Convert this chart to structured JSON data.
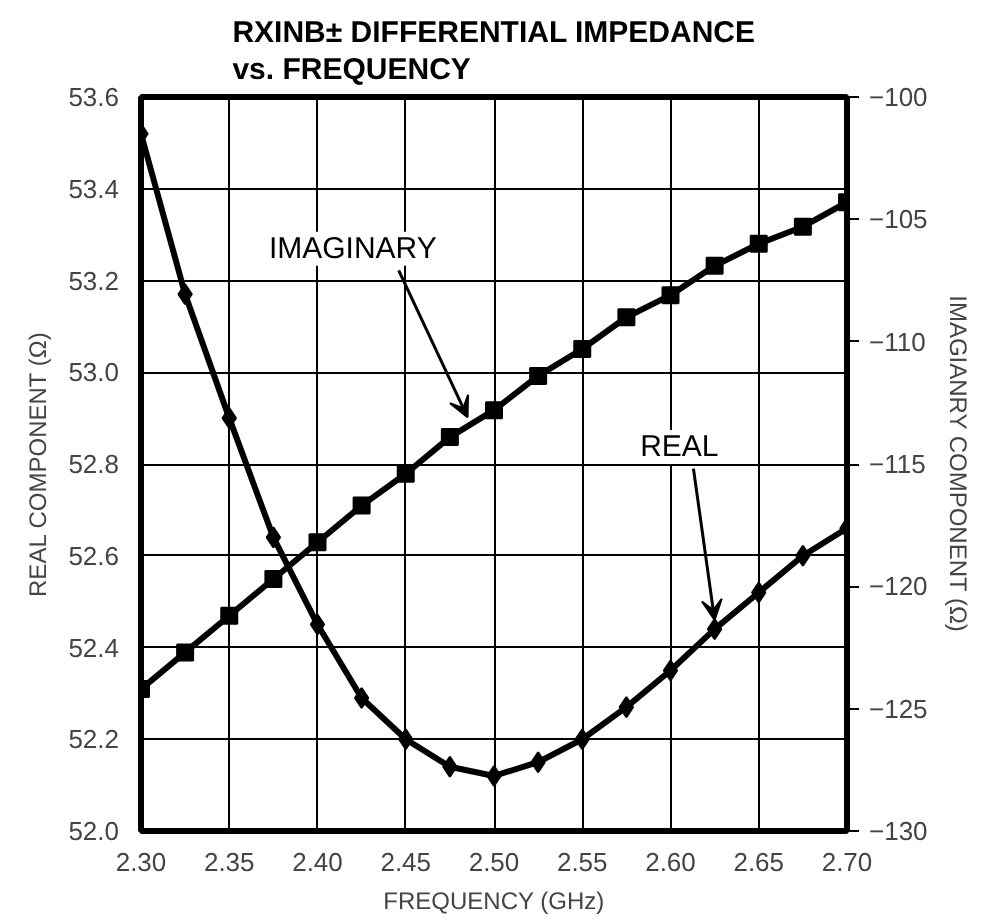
{
  "chart_data": {
    "type": "line",
    "title": "RXINB± DIFFERENTIAL IMPEDANCE\nvs. FREQUENCY",
    "xlabel": "FREQUENCY (GHz)",
    "ylabel": "REAL COMPONENT (Ω)",
    "y2label": "IMAGIANRY COMPONENT (Ω)",
    "x": [
      2.3,
      2.325,
      2.35,
      2.375,
      2.4,
      2.425,
      2.45,
      2.475,
      2.5,
      2.525,
      2.55,
      2.575,
      2.6,
      2.625,
      2.65,
      2.675,
      2.7
    ],
    "series": [
      {
        "name": "REAL",
        "color": "#000000",
        "marker": "diamond",
        "values": [
          53.52,
          53.17,
          52.9,
          52.64,
          52.45,
          52.29,
          52.2,
          52.14,
          52.12,
          52.15,
          52.2,
          52.27,
          52.35,
          52.44,
          52.52,
          52.6,
          52.66
        ]
      },
      {
        "name": "IMAGINARY",
        "color": "#000000",
        "marker": "square",
        "axis": "y2",
        "values": [
          -124.2,
          -122.7,
          -121.2,
          -119.7,
          -118.2,
          -116.7,
          -115.4,
          -113.9,
          -112.8,
          -111.4,
          -110.3,
          -109.0,
          -108.1,
          -106.9,
          -106.0,
          -105.3,
          -104.3
        ]
      }
    ],
    "xlim": [
      2.3,
      2.7
    ],
    "xticks": [
      {
        "value": 2.3,
        "label": "2.30"
      },
      {
        "value": 2.35,
        "label": "2.35"
      },
      {
        "value": 2.4,
        "label": "2.40"
      },
      {
        "value": 2.45,
        "label": "2.45"
      },
      {
        "value": 2.5,
        "label": "2.50"
      },
      {
        "value": 2.55,
        "label": "2.55"
      },
      {
        "value": 2.6,
        "label": "2.60"
      },
      {
        "value": 2.65,
        "label": "2.65"
      },
      {
        "value": 2.7,
        "label": "2.70"
      }
    ],
    "ylim": [
      52.0,
      53.6
    ],
    "yticks": [
      {
        "value": 52.0,
        "label": "52.0"
      },
      {
        "value": 52.2,
        "label": "52.2"
      },
      {
        "value": 52.4,
        "label": "52.4"
      },
      {
        "value": 52.6,
        "label": "52.6"
      },
      {
        "value": 52.8,
        "label": "52.8"
      },
      {
        "value": 53.0,
        "label": "53.0"
      },
      {
        "value": 53.2,
        "label": "53.2"
      },
      {
        "value": 53.4,
        "label": "53.4"
      },
      {
        "value": 53.6,
        "label": "53.6"
      }
    ],
    "y2lim": [
      -130,
      -100
    ],
    "y2ticks": [
      -130,
      -125,
      -120,
      -115,
      -110,
      -105,
      -100
    ],
    "grid": true,
    "line_style": "solid"
  }
}
